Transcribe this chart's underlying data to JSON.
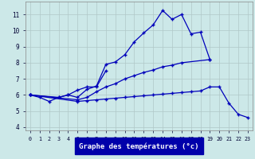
{
  "title": "Graphe des températures (°c)",
  "background_color": "#cce8e8",
  "grid_color": "#b0c8c8",
  "line_color": "#0000bb",
  "xlim": [
    -0.5,
    23.5
  ],
  "ylim": [
    3.8,
    11.8
  ],
  "yticks": [
    4,
    5,
    6,
    7,
    8,
    9,
    10,
    11
  ],
  "xticks": [
    0,
    1,
    2,
    3,
    4,
    5,
    6,
    7,
    8,
    9,
    10,
    11,
    12,
    13,
    14,
    15,
    16,
    17,
    18,
    19,
    20,
    21,
    22,
    23
  ],
  "s1_x": [
    0,
    1,
    2,
    3,
    4,
    5,
    6,
    7,
    8,
    9,
    10,
    11,
    12,
    13,
    14,
    15,
    16,
    17,
    18,
    19
  ],
  "s1_y": [
    6.0,
    5.85,
    5.6,
    5.85,
    6.0,
    5.85,
    6.35,
    6.55,
    7.9,
    8.05,
    8.5,
    9.3,
    9.85,
    10.35,
    11.25,
    10.7,
    11.0,
    9.8,
    9.9,
    8.2
  ],
  "s2_x": [
    0,
    3,
    4,
    5,
    6,
    7,
    8
  ],
  "s2_y": [
    6.0,
    5.85,
    6.0,
    6.3,
    6.5,
    6.5,
    7.5
  ],
  "s3_x": [
    0,
    5,
    6,
    7,
    8,
    9,
    10,
    11,
    12,
    13,
    14,
    15,
    16,
    19
  ],
  "s3_y": [
    6.0,
    5.7,
    5.85,
    6.2,
    6.5,
    6.7,
    7.0,
    7.2,
    7.4,
    7.55,
    7.75,
    7.85,
    8.0,
    8.2
  ],
  "s4_x": [
    0,
    5,
    6,
    7,
    8,
    9,
    10,
    11,
    12,
    13,
    14,
    15,
    16,
    17,
    18,
    19,
    20,
    21,
    22,
    23
  ],
  "s4_y": [
    6.0,
    5.6,
    5.65,
    5.7,
    5.75,
    5.8,
    5.85,
    5.9,
    5.95,
    6.0,
    6.05,
    6.1,
    6.15,
    6.2,
    6.25,
    6.5,
    6.5,
    5.5,
    4.8,
    4.6
  ],
  "xlabel_bg": "#0000aa",
  "xlabel_color": "#ffffff",
  "tick_color": "#000033",
  "spine_color": "#888888"
}
